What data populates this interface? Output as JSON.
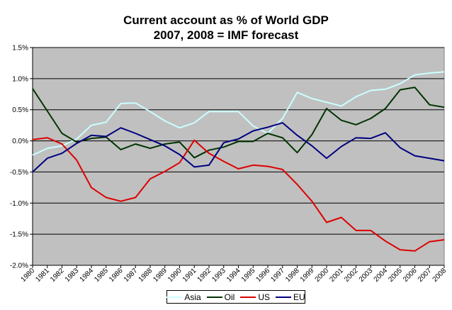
{
  "chart_data": {
    "type": "line",
    "title": [
      "Current account as % of World GDP",
      "2007, 2008 = IMF forecast"
    ],
    "xlabel": "",
    "ylabel": "",
    "x": [
      "1980",
      "1981",
      "1982",
      "1983",
      "1984",
      "1985",
      "1986",
      "1987",
      "1988",
      "1989",
      "1990",
      "1991",
      "1992",
      "1993",
      "1994",
      "1995",
      "1996",
      "1997",
      "1998",
      "1999",
      "2000",
      "2001",
      "2002",
      "2003",
      "2004",
      "2005",
      "2006",
      "2007",
      "2008"
    ],
    "ylim": [
      -2.0,
      1.5
    ],
    "yticks": [
      -2.0,
      -1.5,
      -1.0,
      -0.5,
      0.0,
      0.5,
      1.0,
      1.5
    ],
    "ytick_labels": [
      "-2.0%",
      "-1.5%",
      "-1.0%",
      "-0.5%",
      "0.0%",
      "0.5%",
      "1.0%",
      "1.5%"
    ],
    "grid": "horizontal",
    "plot_background": "#c0c0c0",
    "legend_position": "bottom",
    "series": [
      {
        "name": "Asia",
        "color": "#ccffff",
        "values": [
          -0.23,
          -0.12,
          -0.08,
          0.03,
          0.25,
          0.3,
          0.6,
          0.61,
          0.47,
          0.32,
          0.21,
          0.29,
          0.47,
          0.47,
          0.47,
          0.24,
          0.12,
          0.36,
          0.78,
          0.68,
          0.62,
          0.56,
          0.71,
          0.81,
          0.83,
          0.92,
          1.06,
          1.09,
          1.11
        ]
      },
      {
        "name": "Oil",
        "color": "#003300",
        "values": [
          0.84,
          0.48,
          0.12,
          -0.02,
          0.04,
          0.06,
          -0.14,
          -0.05,
          -0.12,
          -0.05,
          -0.02,
          -0.27,
          -0.15,
          -0.1,
          -0.01,
          -0.01,
          0.12,
          0.05,
          -0.19,
          0.1,
          0.52,
          0.33,
          0.26,
          0.36,
          0.52,
          0.82,
          0.86,
          0.58,
          0.54
        ]
      },
      {
        "name": "US",
        "color": "#dd0000",
        "values": [
          0.02,
          0.05,
          -0.05,
          -0.31,
          -0.75,
          -0.91,
          -0.97,
          -0.91,
          -0.61,
          -0.49,
          -0.35,
          0.01,
          -0.2,
          -0.33,
          -0.45,
          -0.39,
          -0.41,
          -0.46,
          -0.7,
          -0.97,
          -1.31,
          -1.23,
          -1.44,
          -1.44,
          -1.61,
          -1.75,
          -1.77,
          -1.62,
          -1.59
        ]
      },
      {
        "name": "EU",
        "color": "#000080",
        "values": [
          -0.5,
          -0.28,
          -0.2,
          -0.04,
          0.09,
          0.07,
          0.21,
          0.12,
          0.02,
          -0.08,
          -0.22,
          -0.42,
          -0.39,
          -0.03,
          0.03,
          0.16,
          0.22,
          0.29,
          0.09,
          -0.08,
          -0.28,
          -0.09,
          0.05,
          0.04,
          0.13,
          -0.11,
          -0.24,
          -0.28,
          -0.32
        ]
      }
    ]
  }
}
